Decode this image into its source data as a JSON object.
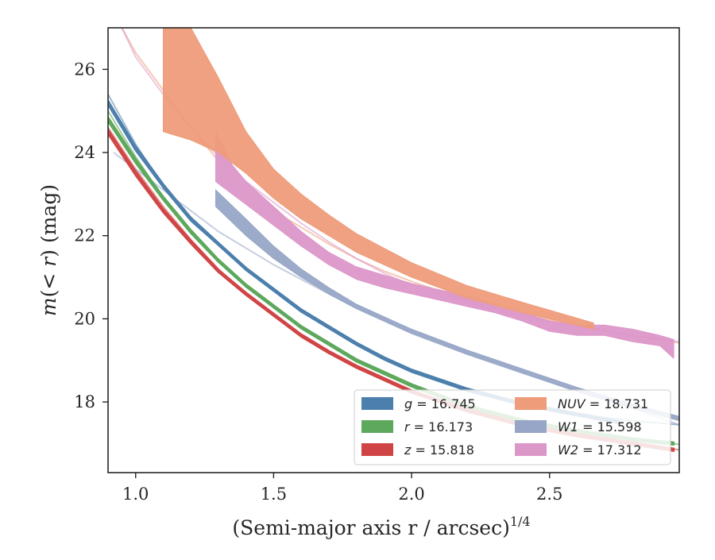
{
  "chart_data": {
    "type": "line",
    "title": "",
    "xlabel": "(Semi-major axis r / arcsec)",
    "xlabel_power": "1/4",
    "ylabel": "m(< r) (mag)",
    "xlim": [
      0.9,
      2.97
    ],
    "ylim": [
      27.0,
      16.3
    ],
    "y_inverted": true,
    "xticks": [
      1.0,
      1.5,
      2.0,
      2.5
    ],
    "xtick_labels": [
      "1.0",
      "1.5",
      "2.0",
      "2.5"
    ],
    "yticks": [
      18,
      20,
      22,
      24,
      26
    ],
    "ytick_labels": [
      "18",
      "20",
      "22",
      "24",
      "26"
    ],
    "grid": false,
    "legend_position": "lower-right",
    "series": [
      {
        "name": "g = 16.745",
        "band": "g",
        "value": "16.745",
        "color": "#4c7fac",
        "model_x": [
          0.9,
          1.0,
          1.1,
          1.2,
          1.3,
          1.4,
          1.5,
          1.6,
          1.7,
          1.8,
          1.9,
          2.0,
          2.2,
          2.4,
          2.6,
          2.8,
          2.97
        ],
        "model_y": [
          25.4,
          24.2,
          23.2,
          22.4,
          21.8,
          21.2,
          20.7,
          20.2,
          19.8,
          19.4,
          19.05,
          18.75,
          18.3,
          17.95,
          17.7,
          17.55,
          17.45
        ],
        "data_x": [
          0.9,
          1.0,
          1.1,
          1.2,
          1.3,
          1.4,
          1.5,
          1.6,
          1.7,
          1.8,
          1.9,
          2.0,
          2.2,
          2.4,
          2.6,
          2.75
        ],
        "data_y": [
          25.2,
          24.1,
          23.2,
          22.4,
          21.8,
          21.2,
          20.7,
          20.2,
          19.8,
          19.4,
          19.05,
          18.75,
          18.3,
          17.95,
          17.7,
          17.52
        ],
        "data_err": [
          0.05,
          0.05,
          0.04,
          0.04,
          0.03,
          0.03,
          0.03,
          0.03,
          0.03,
          0.03,
          0.03,
          0.03,
          0.03,
          0.03,
          0.03,
          0.03
        ]
      },
      {
        "name": "r = 16.173",
        "band": "r",
        "value": "16.173",
        "color": "#5ca85c",
        "model_x": [
          0.9,
          1.0,
          1.1,
          1.2,
          1.3,
          1.4,
          1.5,
          1.6,
          1.7,
          1.8,
          1.9,
          2.0,
          2.2,
          2.4,
          2.6,
          2.8,
          2.97
        ],
        "model_y": [
          25.0,
          23.9,
          22.9,
          22.1,
          21.4,
          20.8,
          20.3,
          19.8,
          19.4,
          19.0,
          18.7,
          18.4,
          17.9,
          17.55,
          17.3,
          17.1,
          16.98
        ],
        "data_x": [
          0.9,
          1.0,
          1.1,
          1.2,
          1.3,
          1.4,
          1.5,
          1.6,
          1.7,
          1.8,
          1.9,
          2.0,
          2.2,
          2.4,
          2.6,
          2.8,
          2.95
        ],
        "data_y": [
          24.8,
          23.8,
          22.9,
          22.1,
          21.4,
          20.8,
          20.3,
          19.8,
          19.4,
          19.0,
          18.7,
          18.4,
          17.9,
          17.55,
          17.3,
          17.1,
          17.0
        ],
        "data_err": [
          0.05,
          0.05,
          0.04,
          0.04,
          0.03,
          0.03,
          0.03,
          0.03,
          0.03,
          0.03,
          0.03,
          0.03,
          0.03,
          0.03,
          0.03,
          0.03,
          0.03
        ]
      },
      {
        "name": "z = 15.818",
        "band": "z",
        "value": "15.818",
        "color": "#d04445",
        "model_x": [
          0.9,
          1.0,
          1.1,
          1.2,
          1.3,
          1.4,
          1.5,
          1.6,
          1.7,
          1.8,
          1.9,
          2.0,
          2.2,
          2.4,
          2.6,
          2.8,
          2.97
        ],
        "model_y": [
          24.6,
          23.6,
          22.7,
          21.9,
          21.2,
          20.6,
          20.1,
          19.6,
          19.2,
          18.85,
          18.55,
          18.25,
          17.8,
          17.45,
          17.2,
          17.0,
          16.85
        ],
        "data_x": [
          0.9,
          1.0,
          1.1,
          1.2,
          1.3,
          1.4,
          1.5,
          1.6,
          1.7,
          1.8,
          1.9,
          2.0,
          2.2,
          2.4,
          2.6,
          2.8,
          2.95
        ],
        "data_y": [
          24.5,
          23.5,
          22.6,
          21.85,
          21.15,
          20.6,
          20.1,
          19.6,
          19.2,
          18.85,
          18.55,
          18.25,
          17.8,
          17.45,
          17.2,
          17.0,
          16.85
        ],
        "data_err": [
          0.05,
          0.05,
          0.04,
          0.04,
          0.03,
          0.03,
          0.03,
          0.03,
          0.03,
          0.03,
          0.03,
          0.03,
          0.03,
          0.03,
          0.03,
          0.03,
          0.03
        ]
      },
      {
        "name": "NUV = 18.731",
        "band": "NUV",
        "value": "18.731",
        "color": "#ee9c7a",
        "model_x": [
          0.95,
          1.0,
          1.1,
          1.2,
          1.3,
          1.4,
          1.5,
          1.6,
          1.7,
          1.8,
          1.9,
          2.0,
          2.2,
          2.4,
          2.6,
          2.8,
          2.97
        ],
        "model_y": [
          27.0,
          26.4,
          25.5,
          24.6,
          23.8,
          23.1,
          22.6,
          22.2,
          21.8,
          21.45,
          21.15,
          20.9,
          20.45,
          20.1,
          19.85,
          19.6,
          19.42
        ],
        "data_x": [
          1.1,
          1.2,
          1.3,
          1.4,
          1.5,
          1.6,
          1.7,
          1.8,
          1.9,
          2.0,
          2.2,
          2.4,
          2.66
        ],
        "data_lo": [
          24.5,
          24.3,
          24.0,
          23.5,
          22.9,
          22.4,
          22.0,
          21.6,
          21.3,
          21.0,
          20.5,
          20.15,
          19.75
        ],
        "data_hi": [
          27.0,
          27.0,
          25.8,
          24.5,
          23.6,
          23.0,
          22.5,
          22.05,
          21.7,
          21.35,
          20.8,
          20.4,
          19.9
        ]
      },
      {
        "name": "W1 = 15.598",
        "band": "W1",
        "value": "15.598",
        "color": "#97a6c6",
        "model_x": [
          0.92,
          1.0,
          1.1,
          1.2,
          1.3,
          1.4,
          1.5,
          1.6,
          1.7,
          1.8,
          1.9,
          2.0,
          2.2,
          2.4,
          2.6,
          2.8,
          2.97
        ],
        "model_y": [
          24.0,
          23.6,
          23.1,
          22.6,
          22.1,
          21.7,
          21.3,
          20.95,
          20.6,
          20.25,
          19.95,
          19.65,
          19.15,
          18.7,
          18.25,
          17.85,
          17.45
        ],
        "data_x": [
          1.29,
          1.4,
          1.5,
          1.6,
          1.7,
          1.8,
          1.9,
          2.0,
          2.2,
          2.4,
          2.6,
          2.8,
          2.97
        ],
        "data_lo": [
          22.7,
          22.0,
          21.45,
          21.0,
          20.6,
          20.25,
          19.95,
          19.65,
          19.15,
          18.7,
          18.25,
          17.85,
          17.55
        ],
        "data_hi": [
          23.1,
          22.4,
          21.75,
          21.2,
          20.75,
          20.35,
          20.05,
          19.75,
          19.25,
          18.8,
          18.35,
          17.95,
          17.65
        ]
      },
      {
        "name": "W2 = 17.312",
        "band": "W2",
        "value": "17.312",
        "color": "#dc97c9",
        "model_x": [
          0.95,
          1.0,
          1.1,
          1.2,
          1.3,
          1.4,
          1.5,
          1.6,
          1.7,
          1.8,
          1.9,
          2.0,
          2.2,
          2.4,
          2.6,
          2.8,
          2.97
        ],
        "model_y": [
          27.0,
          26.3,
          25.4,
          24.6,
          23.9,
          23.3,
          22.8,
          22.3,
          21.85,
          21.45,
          21.1,
          20.8,
          20.4,
          20.05,
          19.8,
          19.6,
          19.45
        ],
        "data_x": [
          1.29,
          1.35,
          1.4,
          1.5,
          1.6,
          1.7,
          1.8,
          1.9,
          2.0,
          2.1,
          2.2,
          2.3,
          2.4,
          2.5,
          2.6,
          2.7,
          2.8,
          2.9,
          2.95
        ],
        "data_lo": [
          23.3,
          23.0,
          22.75,
          22.25,
          21.75,
          21.3,
          20.95,
          20.75,
          20.6,
          20.45,
          20.3,
          20.15,
          19.95,
          19.7,
          19.6,
          19.6,
          19.45,
          19.35,
          19.05
        ],
        "data_hi": [
          24.5,
          23.7,
          23.3,
          22.7,
          22.1,
          21.6,
          21.25,
          21.05,
          20.85,
          20.7,
          20.55,
          20.35,
          20.15,
          19.95,
          19.85,
          19.85,
          19.75,
          19.6,
          19.5
        ]
      }
    ]
  }
}
